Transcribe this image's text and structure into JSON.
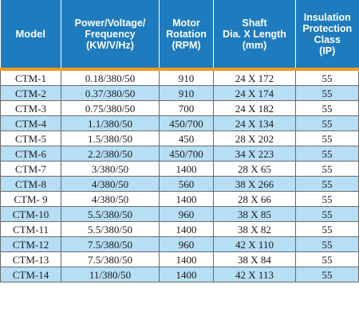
{
  "table": {
    "headers": {
      "model": "Model",
      "power": [
        "Power/Voltage/",
        "Frequency",
        "(KW/V/Hz)"
      ],
      "rotation": [
        "Motor",
        "Rotation",
        "(RPM)"
      ],
      "shaft": [
        "Shaft",
        "Dia. X Length",
        "(mm)"
      ],
      "insulation": [
        "Insulation",
        "Protection",
        "Class",
        "(IP)"
      ]
    },
    "rows": [
      [
        "CTM-1",
        "0.18/380/50",
        "910",
        "24 X 172",
        "55"
      ],
      [
        "CTM-2",
        "0.37/380/50",
        "910",
        "24 X 174",
        "55"
      ],
      [
        "CTM-3",
        "0.75/380/50",
        "700",
        "24 X 182",
        "55"
      ],
      [
        "CTM-4",
        "1.1/380/50",
        "450/700",
        "24 X 134",
        "55"
      ],
      [
        "CTM-5",
        "1.5/380/50",
        "450",
        "28 X 202",
        "55"
      ],
      [
        "CTM-6",
        "2.2/380/50",
        "450/700",
        "34 X 223",
        "55"
      ],
      [
        "CTM-7",
        "3/380/50",
        "1400",
        "28 X 65",
        "55"
      ],
      [
        "CTM-8",
        "4/380/50",
        "560",
        "38 X 266",
        "55"
      ],
      [
        "CTM- 9",
        "4/380/50",
        "1400",
        "28 X 66",
        "55"
      ],
      [
        "CTM-10",
        "5.5/380/50",
        "960",
        "38 X 85",
        "55"
      ],
      [
        "CTM-11",
        "5.5/380/50",
        "1400",
        "38 X 82",
        "55"
      ],
      [
        "CTM-12",
        "7.5/380/50",
        "960",
        "42 X 110",
        "55"
      ],
      [
        "CTM-13",
        "7.5/380/50",
        "1400",
        "38 X 84",
        "55"
      ],
      [
        "CTM-14",
        "11/380/50",
        "1400",
        "42 X 113",
        "55"
      ]
    ]
  },
  "colors": {
    "header_background": "#1e7bbd",
    "header_divider": "#f39a1e",
    "stripe": "#b6def5"
  }
}
